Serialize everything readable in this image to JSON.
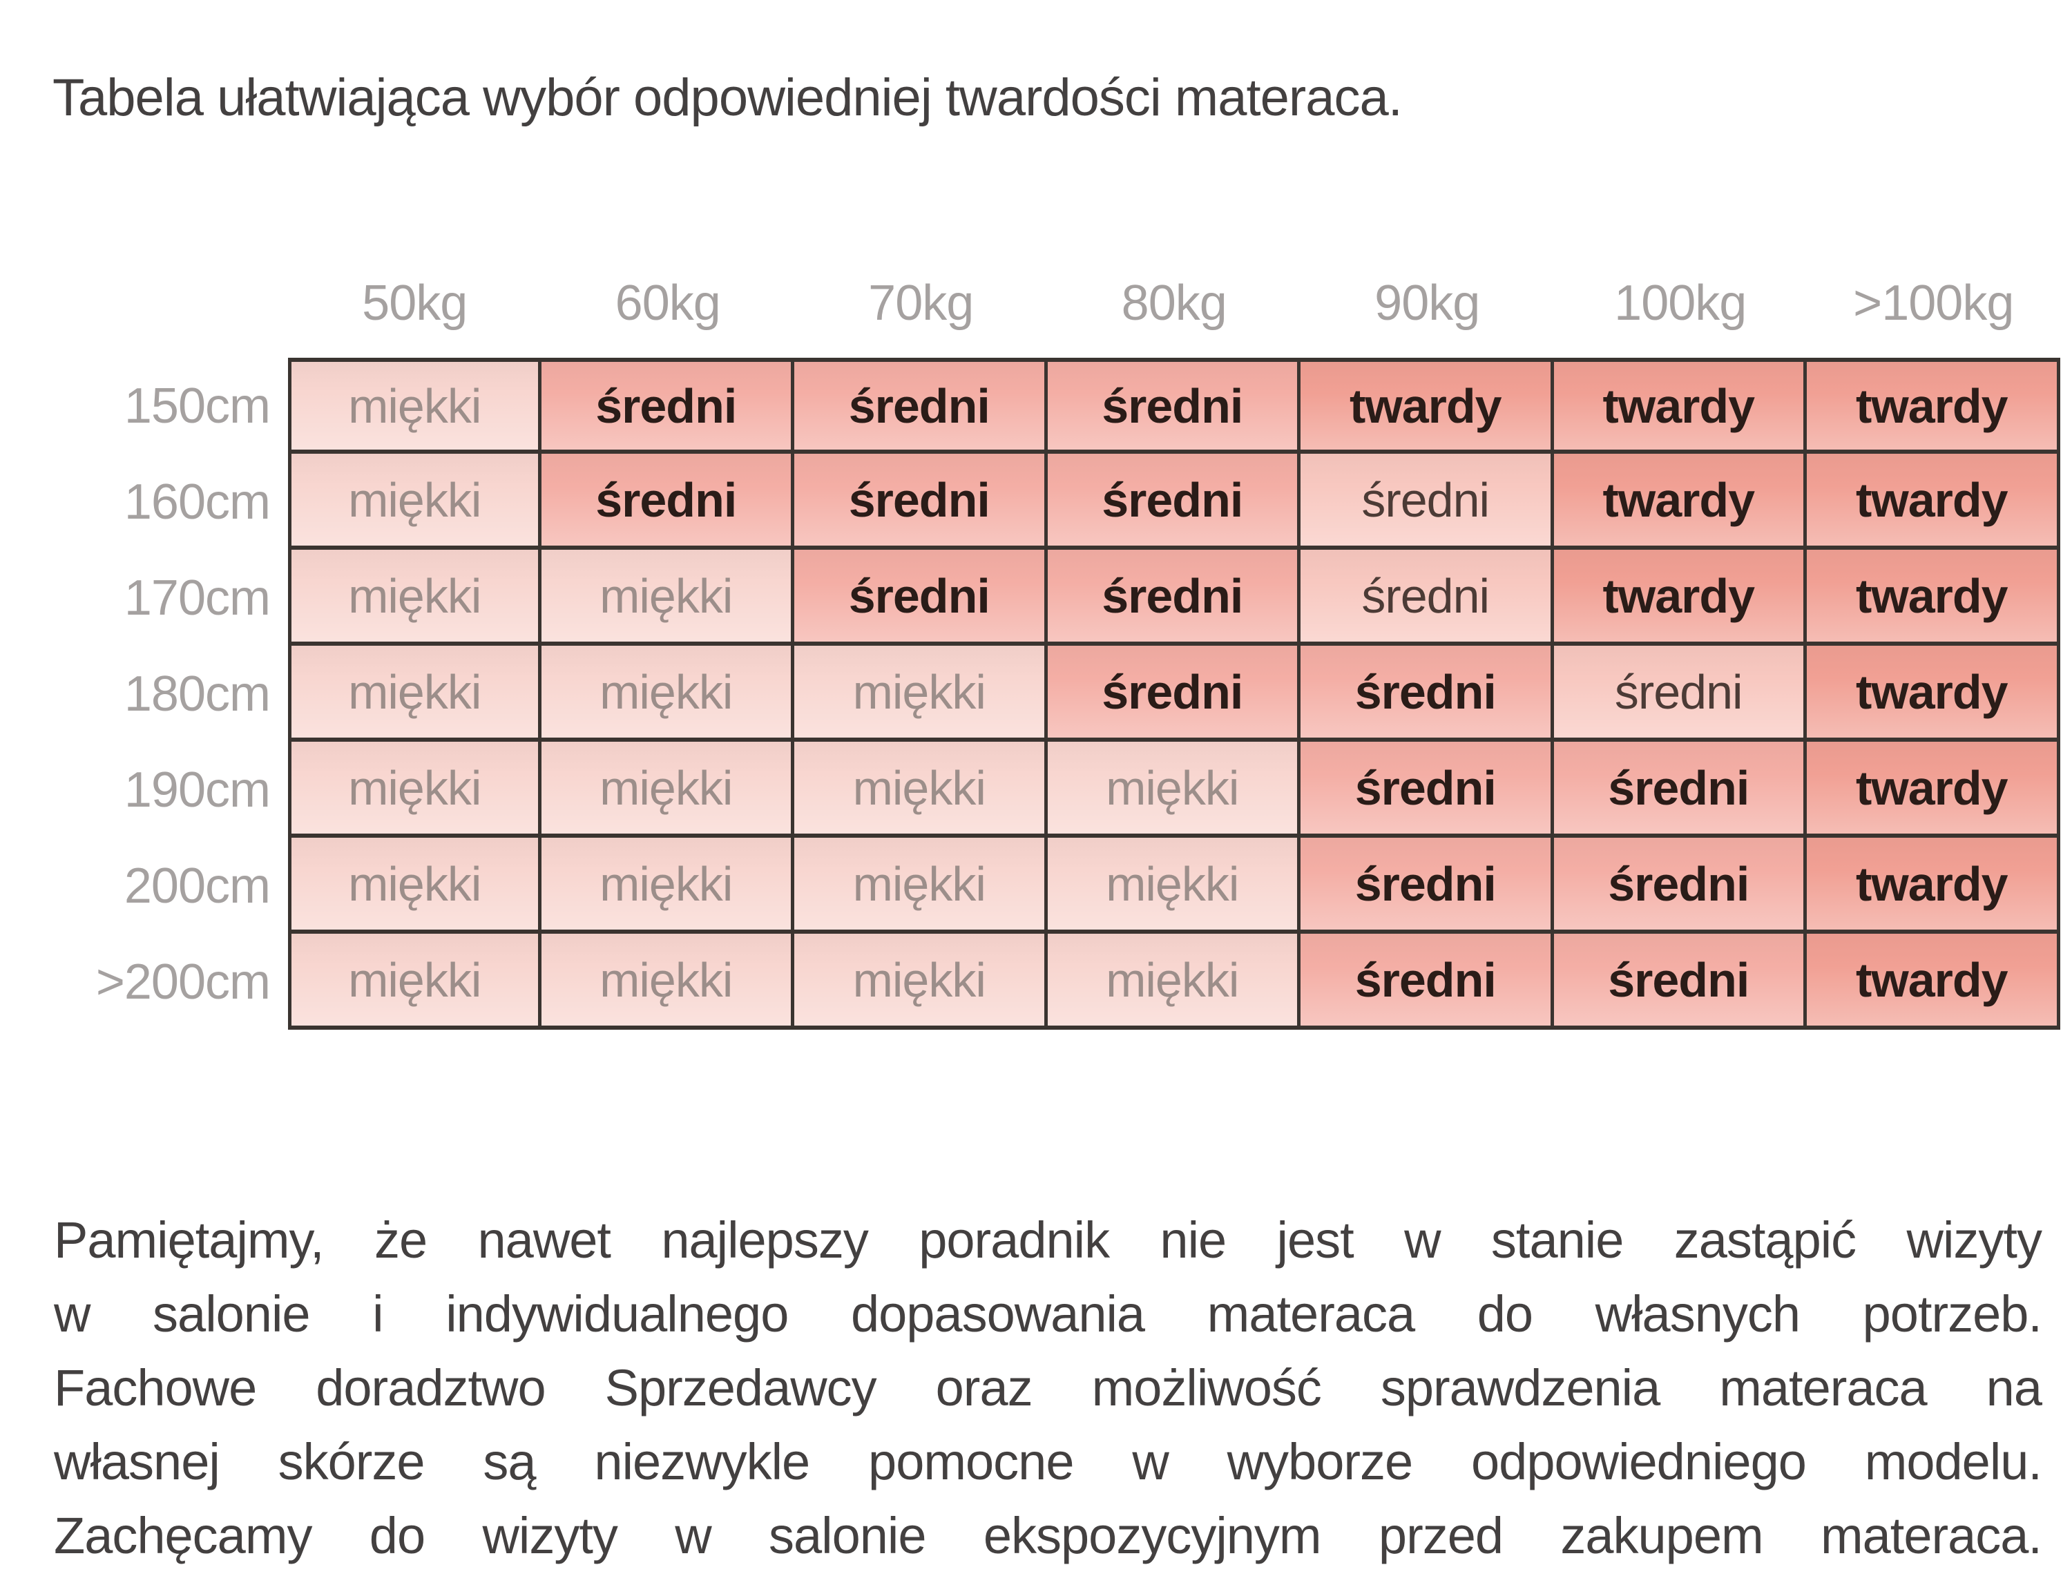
{
  "title": "Tabela ułatwiająca wybór odpowiedniej twardości materaca.",
  "table": {
    "col_headers": [
      "50kg",
      "60kg",
      "70kg",
      "80kg",
      "90kg",
      "100kg",
      ">100kg"
    ],
    "rows": [
      {
        "header": "150cm",
        "cells": [
          {
            "label": "miękki",
            "level": "soft"
          },
          {
            "label": "średni",
            "level": "medium"
          },
          {
            "label": "średni",
            "level": "medium"
          },
          {
            "label": "średni",
            "level": "medium"
          },
          {
            "label": "twardy",
            "level": "hard"
          },
          {
            "label": "twardy",
            "level": "hard"
          },
          {
            "label": "twardy",
            "level": "hard"
          }
        ]
      },
      {
        "header": "160cm",
        "cells": [
          {
            "label": "miękki",
            "level": "soft"
          },
          {
            "label": "średni",
            "level": "medium"
          },
          {
            "label": "średni",
            "level": "medium"
          },
          {
            "label": "średni",
            "level": "medium"
          },
          {
            "label": "średni",
            "level": "medium_light"
          },
          {
            "label": "twardy",
            "level": "hard"
          },
          {
            "label": "twardy",
            "level": "hard"
          }
        ]
      },
      {
        "header": "170cm",
        "cells": [
          {
            "label": "miękki",
            "level": "soft"
          },
          {
            "label": "miękki",
            "level": "soft"
          },
          {
            "label": "średni",
            "level": "medium"
          },
          {
            "label": "średni",
            "level": "medium"
          },
          {
            "label": "średni",
            "level": "medium_light"
          },
          {
            "label": "twardy",
            "level": "hard"
          },
          {
            "label": "twardy",
            "level": "hard"
          }
        ]
      },
      {
        "header": "180cm",
        "cells": [
          {
            "label": "miękki",
            "level": "soft"
          },
          {
            "label": "miękki",
            "level": "soft"
          },
          {
            "label": "miękki",
            "level": "soft"
          },
          {
            "label": "średni",
            "level": "medium"
          },
          {
            "label": "średni",
            "level": "medium"
          },
          {
            "label": "średni",
            "level": "medium_light"
          },
          {
            "label": "twardy",
            "level": "hard"
          }
        ]
      },
      {
        "header": "190cm",
        "cells": [
          {
            "label": "miękki",
            "level": "soft"
          },
          {
            "label": "miękki",
            "level": "soft"
          },
          {
            "label": "miękki",
            "level": "soft"
          },
          {
            "label": "miękki",
            "level": "soft"
          },
          {
            "label": "średni",
            "level": "medium"
          },
          {
            "label": "średni",
            "level": "medium"
          },
          {
            "label": "twardy",
            "level": "hard"
          }
        ]
      },
      {
        "header": "200cm",
        "cells": [
          {
            "label": "miękki",
            "level": "soft"
          },
          {
            "label": "miękki",
            "level": "soft"
          },
          {
            "label": "miękki",
            "level": "soft"
          },
          {
            "label": "miękki",
            "level": "soft"
          },
          {
            "label": "średni",
            "level": "medium"
          },
          {
            "label": "średni",
            "level": "medium"
          },
          {
            "label": "twardy",
            "level": "hard"
          }
        ]
      },
      {
        "header": ">200cm",
        "cells": [
          {
            "label": "miękki",
            "level": "soft"
          },
          {
            "label": "miękki",
            "level": "soft"
          },
          {
            "label": "miękki",
            "level": "soft"
          },
          {
            "label": "miękki",
            "level": "soft"
          },
          {
            "label": "średni",
            "level": "medium"
          },
          {
            "label": "średni",
            "level": "medium"
          },
          {
            "label": "twardy",
            "level": "hard"
          }
        ]
      }
    ]
  },
  "footer": {
    "lines": [
      "Pamiętajmy, że nawet najlepszy poradnik nie jest w stanie zastąpić wizyty",
      "w salonie i indywidualnego dopasowania materaca do własnych potrzeb.",
      "Fachowe doradztwo Sprzedawcy oraz możliwość sprawdzenia materaca na",
      "własnej skórze są niezwykle pomocne w wyborze odpowiedniego modelu.",
      "Zachęcamy do wizyty w salonie ekspozycyjnym przed zakupem materaca."
    ]
  },
  "colors": {
    "soft_bg": "#f8d6d0",
    "medium_bg": "#f4aea5",
    "medium_light_bg": "#f8c8c0",
    "hard_bg": "#f1a094",
    "border": "#3a3430",
    "muted_text": "#a5a1a0",
    "soft_text": "#9c8e8a",
    "medium_light_text": "#4c3b36",
    "dark_text": "#2a1c18",
    "body_text": "#434040"
  }
}
